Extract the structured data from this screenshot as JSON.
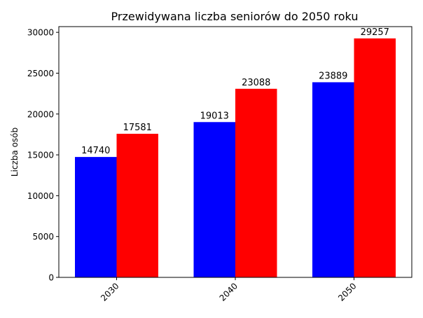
{
  "chart_data": {
    "type": "bar",
    "title": "Przewidywana liczba seniorów do 2050 roku",
    "xlabel": "",
    "ylabel": "Liczba osób",
    "categories": [
      "2030",
      "2040",
      "2050"
    ],
    "series": [
      {
        "color": "#0000ff",
        "values": [
          14740,
          19013,
          23889
        ]
      },
      {
        "color": "#ff0000",
        "values": [
          17581,
          23088,
          29257
        ]
      }
    ],
    "ylim": [
      0,
      30700
    ],
    "yticks": [
      0,
      5000,
      10000,
      15000,
      20000,
      25000,
      30000
    ],
    "grid": false
  }
}
